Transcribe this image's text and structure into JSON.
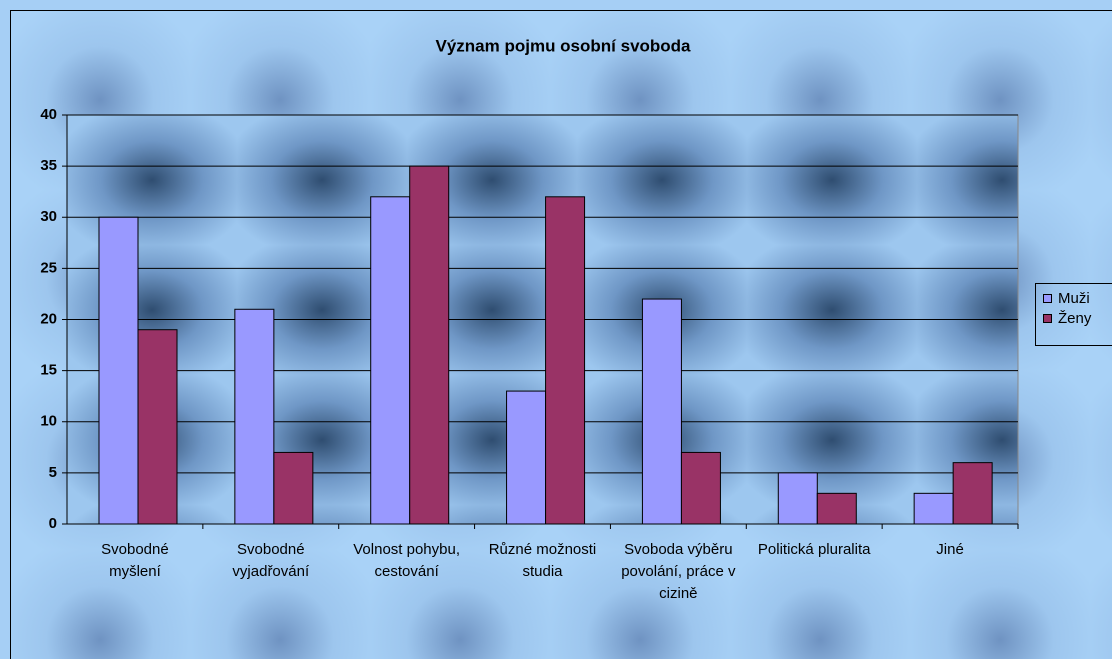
{
  "chart_data": {
    "type": "bar",
    "title": "Význam pojmu osobní svoboda",
    "categories": [
      "Svobodné myšlení",
      "Svobodné vyjadřování",
      "Volnost pohybu, cestování",
      "Různé možnosti studia",
      "Svoboda výběru povolání, práce v cizině",
      "Politická pluralita",
      "Jiné"
    ],
    "series": [
      {
        "name": "Muži",
        "color": "#9999ff",
        "values": [
          30,
          21,
          32,
          13,
          22,
          5,
          3
        ]
      },
      {
        "name": "Ženy",
        "color": "#993366",
        "values": [
          19,
          7,
          35,
          32,
          7,
          3,
          6
        ]
      }
    ],
    "ylim": [
      0,
      40
    ],
    "yticks": [
      0,
      5,
      10,
      15,
      20,
      25,
      30,
      35,
      40
    ],
    "grid": true,
    "legend": "right"
  }
}
